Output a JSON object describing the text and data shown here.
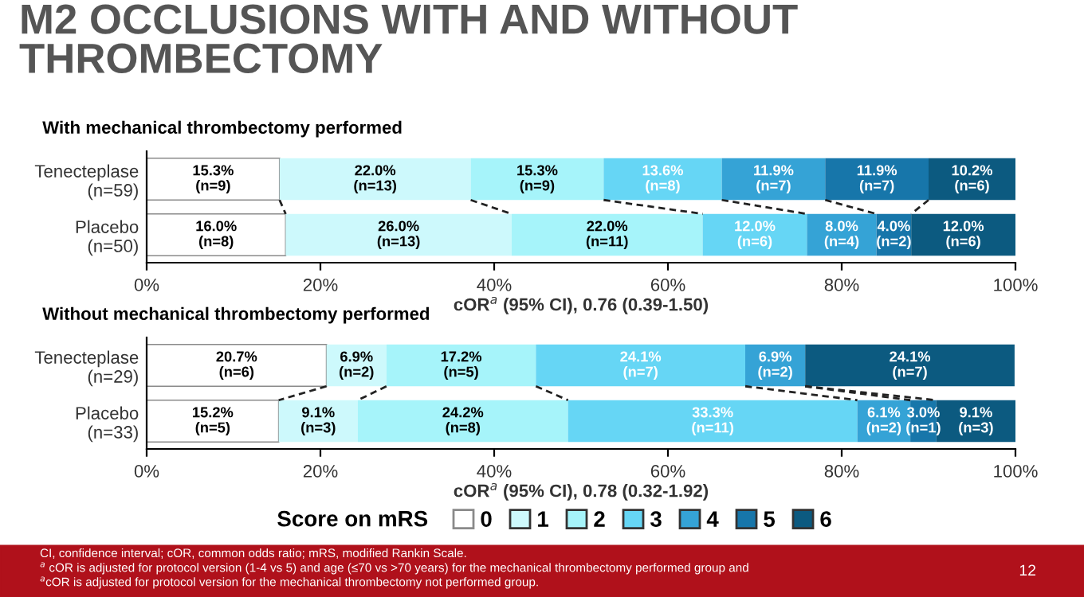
{
  "chart_data": [
    {
      "type": "bar",
      "orientation": "horizontal",
      "stacked": true,
      "title": "M2 OCCLUSIONS WITH AND WITHOUT THROMBECTOMY",
      "subtitle": "With mechanical thrombectomy performed",
      "xlabel": "cOR$^{a}$ (95% CI), 0.76 (0.39-1.50)",
      "categories": [
        "Tenecteplase\n(n=59)",
        "Placebo\n(n=50)"
      ],
      "xlim": [
        0,
        100
      ],
      "xticks": [
        {
          "value": 0,
          "label": "0%"
        },
        {
          "value": 20,
          "label": "20%"
        },
        {
          "value": 40,
          "label": "40%"
        },
        {
          "value": 60,
          "label": "60%"
        },
        {
          "value": 80,
          "label": "80%"
        },
        {
          "value": 100,
          "label": "100%"
        }
      ],
      "legend": false,
      "grid": false,
      "series": [
        {
          "color": "#ffffff",
          "values": [
            15.3,
            16.0
          ],
          "value_labels": [
            "15.3%\n(n=9)",
            "16.0%\n(n=8)"
          ]
        },
        {
          "color": "#cdf9fc",
          "values": [
            22.0,
            26.0
          ],
          "value_labels": [
            "22.0%\n(n=13)",
            "26.0%\n(n=13)"
          ]
        },
        {
          "color": "#a6f4fa",
          "values": [
            15.3,
            22.0
          ],
          "value_labels": [
            "15.3%\n(n=9)",
            "22.0%\n(n=11)"
          ]
        },
        {
          "color": "#66d6f5",
          "values": [
            13.6,
            12.0
          ],
          "value_labels": [
            "13.6%\n(n=8)",
            "12.0%\n(n=6)"
          ]
        },
        {
          "color": "#35a3d6",
          "values": [
            11.9,
            8.0
          ],
          "value_labels": [
            "11.9%\n(n=7)",
            "8.0%\n(n=4)"
          ]
        },
        {
          "color": "#1776aa",
          "values": [
            11.9,
            4.0
          ],
          "value_labels": [
            "11.9%\n(n=7)",
            "4.0%\n(n=2)"
          ]
        },
        {
          "color": "#0c5a80",
          "values": [
            10.2,
            12.0
          ],
          "value_labels": [
            "10.2%\n(n=6)",
            "12.0%\n(n=6)"
          ]
        }
      ]
    },
    {
      "type": "bar",
      "orientation": "horizontal",
      "stacked": true,
      "title": "Without mechanical thrombectomy performed",
      "xlabel": "cOR$^{a}$ (95% CI), 0.78 (0.32-1.92)",
      "legend_title": "Score on mRS",
      "categories": [
        "Tenecteplase\n(n=29)",
        "Placebo\n(n=33)"
      ],
      "xlim": [
        0,
        100
      ],
      "xticks": [
        {
          "value": 0,
          "label": "0%"
        },
        {
          "value": 20,
          "label": "20%"
        },
        {
          "value": 40,
          "label": "40%"
        },
        {
          "value": 60,
          "label": "60%"
        },
        {
          "value": 80,
          "label": "80%"
        },
        {
          "value": 100,
          "label": "100%"
        }
      ],
      "legend": "bottom",
      "grid": false,
      "series": [
        {
          "name": "0",
          "color": "#ffffff",
          "values": [
            20.7,
            15.2
          ],
          "value_labels": [
            "20.7%\n(n=6)",
            "15.2%\n(n=5)"
          ]
        },
        {
          "name": "1",
          "color": "#cdf9fc",
          "values": [
            6.9,
            9.1
          ],
          "value_labels": [
            "6.9%\n(n=2)",
            "9.1%\n(n=3)"
          ]
        },
        {
          "name": "2",
          "color": "#a6f4fa",
          "values": [
            17.2,
            24.2
          ],
          "value_labels": [
            "17.2%\n(n=5)",
            "24.2%\n(n=8)"
          ]
        },
        {
          "name": "3",
          "color": "#66d6f5",
          "values": [
            24.1,
            33.3
          ],
          "value_labels": [
            "24.1%\n(n=7)",
            "33.3%\n(n=11)"
          ]
        },
        {
          "name": "4",
          "color": "#35a3d6",
          "values": [
            6.9,
            6.1
          ],
          "value_labels": [
            "6.9%\n(n=2)",
            "6.1%\n(n=2)"
          ]
        },
        {
          "name": "5",
          "color": "#1776aa",
          "values": [
            0,
            3.0
          ],
          "value_labels": [
            null,
            "3.0%\n(n=1)"
          ]
        },
        {
          "name": "6",
          "color": "#0c5a80",
          "values": [
            24.1,
            9.1
          ],
          "value_labels": [
            "24.1%\n(n=7)",
            "9.1%\n(n=3)"
          ]
        }
      ],
      "annotations": [
        "CI, confidence interval; cOR, common odds ratio; mRS, modified Rankin Scale.",
        "$^{a}$ cOR is adjusted for protocol version (1-4 vs 5) and age (≤70 vs >70 years) for the mechanical thrombectomy performed group and",
        "$^{a}$cOR is adjusted for protocol version for the mechanical thrombectomy not performed group.",
        "12"
      ]
    }
  ]
}
